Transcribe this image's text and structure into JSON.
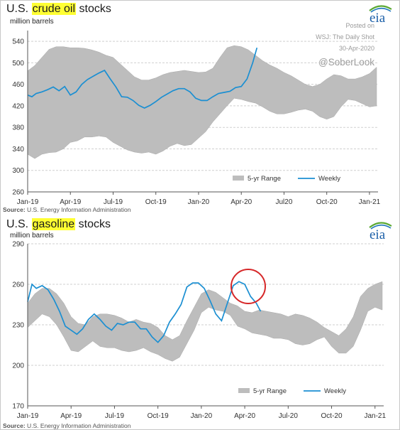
{
  "brand": {
    "logo_text": "eia"
  },
  "annotations": {
    "posted_label": "Posted on",
    "publisher": "WSJ: The Daily Shot",
    "date": "30-Apr-2020",
    "handle": "@SoberLook"
  },
  "colors": {
    "range_fill": "#bdbdbd",
    "weekly_line": "#1b8fd2",
    "highlight": "#ffff33",
    "circle": "#d62728",
    "logo_arc_green": "#5aa832",
    "logo_arc_blue": "#1b75bb"
  },
  "charts": [
    {
      "title_prefix": "U.S. ",
      "title_highlight": "crude oil",
      "title_suffix": " stocks",
      "unit": "million barrels",
      "source_label": "Source:",
      "source_text": " U.S. Energy Information Administration",
      "legend": {
        "range_label": "5-yr Range",
        "weekly_label": "Weekly"
      }
    },
    {
      "title_prefix": "U.S. ",
      "title_highlight": "gasoline",
      "title_suffix": " stocks",
      "unit": "million barrels",
      "source_label": "Source:",
      "source_text": " U.S. Energy Information Administration",
      "legend": {
        "range_label": "5-yr Range",
        "weekly_label": "Weekly"
      }
    }
  ],
  "chart_data": [
    {
      "type": "area",
      "title": "U.S. crude oil stocks",
      "ylabel": "million barrels",
      "xlim": [
        0,
        24.6
      ],
      "ylim": [
        260,
        560
      ],
      "yticks": [
        260,
        300,
        340,
        380,
        420,
        460,
        500,
        540
      ],
      "xticks": [
        0,
        3,
        6,
        9,
        12,
        15,
        18,
        21,
        24
      ],
      "xtick_labels": [
        "Jan-19",
        "Apr-19",
        "Jul-19",
        "Oct-19",
        "Jan-20",
        "Apr-20",
        "Jul20",
        "Oct-20",
        "Jan-21"
      ],
      "grid": true,
      "legend_position": "bottom-right",
      "series": [
        {
          "name": "5-yr Range",
          "kind": "band",
          "x": [
            0,
            0.5,
            1,
            1.5,
            2,
            2.5,
            3,
            3.5,
            4,
            4.5,
            5,
            5.5,
            6,
            6.5,
            7,
            7.5,
            8,
            8.5,
            9,
            9.5,
            10,
            10.5,
            11,
            11.5,
            12,
            12.5,
            13,
            13.5,
            14,
            14.5,
            15,
            15.5,
            16,
            16.5,
            17,
            17.5,
            18,
            18.5,
            19,
            19.5,
            20,
            20.5,
            21,
            21.5,
            22,
            22.5,
            23,
            23.5,
            24,
            24.5
          ],
          "upper": [
            485,
            495,
            510,
            525,
            530,
            530,
            528,
            528,
            527,
            524,
            520,
            514,
            510,
            498,
            486,
            474,
            468,
            468,
            472,
            478,
            482,
            484,
            486,
            484,
            482,
            483,
            490,
            510,
            528,
            532,
            530,
            524,
            514,
            504,
            496,
            490,
            482,
            476,
            468,
            460,
            456,
            460,
            470,
            478,
            476,
            470,
            470,
            474,
            480,
            492
          ],
          "lower": [
            330,
            322,
            330,
            333,
            334,
            340,
            352,
            355,
            362,
            362,
            364,
            362,
            352,
            345,
            338,
            334,
            332,
            334,
            330,
            336,
            345,
            350,
            346,
            348,
            360,
            372,
            390,
            405,
            420,
            434,
            432,
            428,
            425,
            418,
            410,
            405,
            405,
            408,
            412,
            414,
            410,
            400,
            395,
            400,
            418,
            432,
            430,
            424,
            418,
            420
          ]
        },
        {
          "name": "Weekly",
          "kind": "line",
          "x": [
            0,
            0.3,
            0.6,
            1,
            1.4,
            1.8,
            2.2,
            2.6,
            3,
            3.4,
            3.8,
            4.2,
            4.6,
            5,
            5.4,
            5.8,
            6.2,
            6.6,
            7,
            7.4,
            7.8,
            8.2,
            8.6,
            9,
            9.4,
            9.8,
            10.2,
            10.6,
            11,
            11.4,
            11.8,
            12.2,
            12.6,
            13,
            13.4,
            13.8,
            14.2,
            14.6,
            15,
            15.4,
            15.8,
            16.1
          ],
          "y": [
            440,
            437,
            443,
            446,
            450,
            455,
            448,
            456,
            440,
            446,
            460,
            469,
            475,
            481,
            486,
            470,
            455,
            437,
            436,
            430,
            421,
            416,
            421,
            428,
            436,
            442,
            448,
            452,
            452,
            446,
            434,
            430,
            430,
            437,
            443,
            445,
            447,
            454,
            456,
            470,
            500,
            528
          ]
        }
      ]
    },
    {
      "type": "area",
      "title": "U.S. gasoline stocks",
      "ylabel": "million barrels",
      "xlim": [
        0,
        24.6
      ],
      "ylim": [
        170,
        290
      ],
      "yticks": [
        170,
        200,
        230,
        260,
        290
      ],
      "xticks": [
        0,
        3,
        6,
        9,
        12,
        15,
        18,
        21,
        24
      ],
      "xtick_labels": [
        "Jan-19",
        "Apr-19",
        "Jul-19",
        "Oct-19",
        "Jan-20",
        "Apr-20",
        "Jul-20",
        "Oct-20",
        "Jan-21"
      ],
      "grid": true,
      "legend_position": "bottom-right",
      "series": [
        {
          "name": "5-yr Range",
          "kind": "band",
          "x": [
            0,
            0.5,
            1,
            1.5,
            2,
            2.5,
            3,
            3.5,
            4,
            4.5,
            5,
            5.5,
            6,
            6.5,
            7,
            7.5,
            8,
            8.5,
            9,
            9.5,
            10,
            10.5,
            11,
            11.5,
            12,
            12.5,
            13,
            13.5,
            14,
            14.5,
            15,
            15.5,
            16,
            16.5,
            17,
            17.5,
            18,
            18.5,
            19,
            19.5,
            20,
            20.5,
            21,
            21.5,
            22,
            22.5,
            23,
            23.5,
            24,
            24.5
          ],
          "upper": [
            246,
            253,
            257,
            257,
            253,
            246,
            236,
            231,
            230,
            236,
            238,
            238,
            237,
            235,
            232,
            234,
            232,
            231,
            228,
            222,
            219,
            222,
            233,
            243,
            253,
            256,
            254,
            250,
            246,
            244,
            240,
            239,
            241,
            240,
            239,
            238,
            236,
            238,
            237,
            235,
            232,
            228,
            225,
            222,
            227,
            236,
            251,
            257,
            260,
            262
          ],
          "lower": [
            228,
            233,
            238,
            236,
            230,
            221,
            211,
            210,
            214,
            218,
            214,
            213,
            213,
            211,
            210,
            211,
            213,
            210,
            208,
            205,
            203,
            206,
            216,
            226,
            239,
            243,
            241,
            240,
            237,
            229,
            227,
            224,
            223,
            222,
            220,
            220,
            219,
            216,
            215,
            216,
            219,
            221,
            214,
            209,
            209,
            214,
            226,
            240,
            243,
            241
          ]
        },
        {
          "name": "Weekly",
          "kind": "line",
          "x": [
            0,
            0.3,
            0.6,
            1,
            1.4,
            1.8,
            2.2,
            2.6,
            3,
            3.4,
            3.8,
            4.2,
            4.6,
            5,
            5.4,
            5.8,
            6.2,
            6.6,
            7,
            7.4,
            7.8,
            8.2,
            8.6,
            9,
            9.4,
            9.8,
            10.2,
            10.6,
            11,
            11.4,
            11.8,
            12.2,
            12.6,
            13,
            13.4,
            13.8,
            14.2,
            14.6,
            15,
            15.4,
            15.8,
            16.1
          ],
          "y": [
            247,
            260,
            257,
            259,
            256,
            249,
            240,
            229,
            226,
            223,
            227,
            234,
            238,
            234,
            229,
            226,
            231,
            230,
            232,
            232,
            227,
            227,
            221,
            217,
            222,
            232,
            238,
            245,
            258,
            261,
            261,
            257,
            248,
            238,
            233,
            246,
            259,
            262,
            260,
            251,
            246,
            240
          ]
        }
      ]
    }
  ]
}
